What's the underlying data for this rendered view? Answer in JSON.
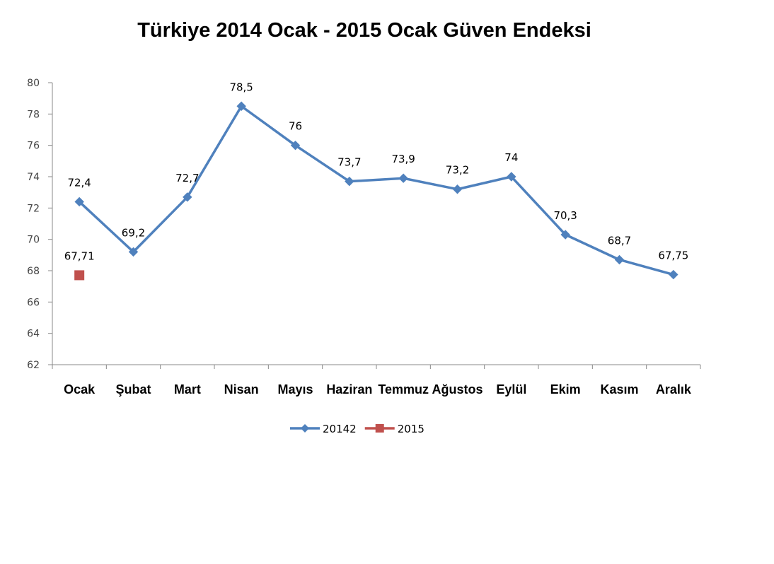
{
  "chart_data": {
    "type": "line",
    "title": "Türkiye 2014 Ocak - 2015 Ocak Güven Endeksi",
    "categories": [
      "Ocak",
      "Şubat",
      "Mart",
      "Nisan",
      "Mayıs",
      "Haziran",
      "Temmuz",
      "Ağustos",
      "Eylül",
      "Ekim",
      "Kasım",
      "Aralık"
    ],
    "ylim": [
      62,
      80
    ],
    "yticks": [
      "62",
      "64",
      "66",
      "68",
      "70",
      "72",
      "74",
      "76",
      "78",
      "80"
    ],
    "series": [
      {
        "name": "20142",
        "color": "#4F81BD",
        "marker": "diamond",
        "values": [
          72.4,
          69.2,
          72.7,
          78.5,
          76,
          73.7,
          73.9,
          73.2,
          74,
          70.3,
          68.7,
          67.75
        ],
        "labels": [
          "72,4",
          "69,2",
          "72,7",
          "78,5",
          "76",
          "73,7",
          "73,9",
          "73,2",
          "74",
          "70,3",
          "68,7",
          "67,75"
        ]
      },
      {
        "name": "2015",
        "color": "#C0504D",
        "marker": "square",
        "values": [
          67.71,
          null,
          null,
          null,
          null,
          null,
          null,
          null,
          null,
          null,
          null,
          null
        ],
        "labels": [
          "67,71",
          null,
          null,
          null,
          null,
          null,
          null,
          null,
          null,
          null,
          null,
          null
        ]
      }
    ],
    "legend": "bottom",
    "grid": false
  }
}
